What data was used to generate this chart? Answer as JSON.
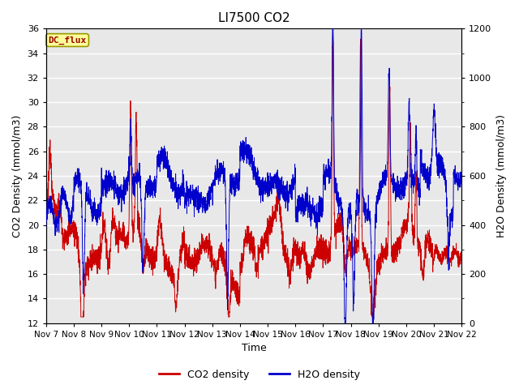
{
  "title": "LI7500 CO2",
  "xlabel": "Time",
  "ylabel_left": "CO2 Density (mmol/m3)",
  "ylabel_right": "H2O Density (mmol/m3)",
  "ylim_left": [
    12,
    36
  ],
  "ylim_right": [
    0,
    1200
  ],
  "yticks_left": [
    12,
    14,
    16,
    18,
    20,
    22,
    24,
    26,
    28,
    30,
    32,
    34,
    36
  ],
  "yticks_right": [
    0,
    200,
    400,
    600,
    800,
    1000,
    1200
  ],
  "xtick_labels": [
    "Nov 7",
    "Nov 8",
    "Nov 9",
    "Nov 10",
    "Nov 11",
    "Nov 12",
    "Nov 13",
    "Nov 14",
    "Nov 15",
    "Nov 16",
    "Nov 17",
    "Nov 18",
    "Nov 19",
    "Nov 20",
    "Nov 21",
    "Nov 22"
  ],
  "co2_color": "#cc0000",
  "h2o_color": "#0000cc",
  "legend_co2": "CO2 density",
  "legend_h2o": "H2O density",
  "dc_flux_label": "DC_flux",
  "dc_flux_bg": "#ffff99",
  "dc_flux_fg": "#990000",
  "dc_flux_edge": "#999900",
  "plot_bg": "#e8e8e8",
  "fig_bg": "#ffffff",
  "grid_color": "#ffffff",
  "title_fontsize": 11,
  "axis_label_fontsize": 9,
  "tick_fontsize": 8,
  "legend_fontsize": 9
}
